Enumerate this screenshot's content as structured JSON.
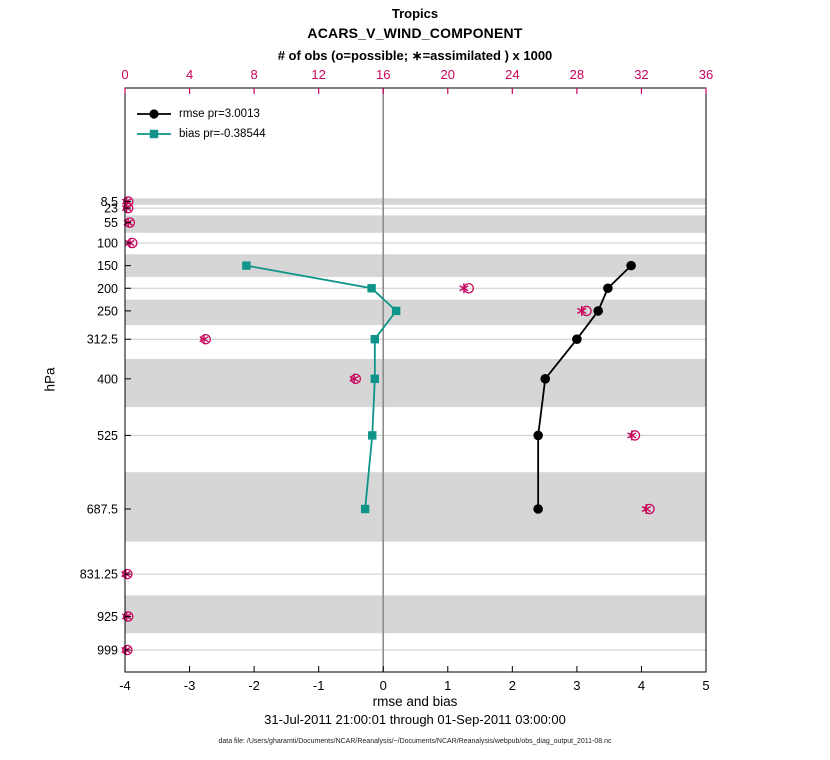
{
  "chart_data": {
    "type": "line",
    "title": "Tropics",
    "subtitle": "ACARS_V_WIND_COMPONENT",
    "obs_axis_label": "# of obs (o=possible; ∗=assimilated ) x 1000",
    "xlabel": "rmse and bias",
    "ylabel": "hPa",
    "timespan": "31-Jul-2011 21:00:01 through 01-Sep-2011 03:00:00",
    "datafile": "data file: /Users/gharamti/Documents/NCAR/Reanalysis/~/Documents/NCAR/Reanalysis/webpub/obs_diag_output_2011-08.nc",
    "legend": [
      {
        "series": "rmse",
        "label": "rmse pr=3.0013"
      },
      {
        "series": "bias",
        "label": "bias pr=-0.38544"
      }
    ],
    "legend_position": "top-left-inside",
    "grid": "horizontal",
    "xlim_bottom": [
      -4,
      5
    ],
    "xlim_top": [
      0,
      36
    ],
    "x_ticks_bottom": [
      -4,
      -3,
      -2,
      -1,
      0,
      1,
      2,
      3,
      4,
      5
    ],
    "x_ticks_top": [
      0,
      4,
      8,
      12,
      16,
      20,
      24,
      28,
      32,
      36
    ],
    "y_levels": [
      8.5,
      23,
      55,
      100,
      150,
      200,
      250,
      312.5,
      400,
      525,
      687.5,
      831.25,
      925,
      999
    ],
    "shaded_levels": [
      8.5,
      55,
      150,
      250,
      400,
      687.5,
      925
    ],
    "series": {
      "rmse": {
        "levels": [
          150,
          200,
          250,
          312.5,
          400,
          525,
          687.5
        ],
        "values": [
          3.84,
          3.48,
          3.33,
          3.0,
          2.51,
          2.4,
          2.4
        ]
      },
      "bias": {
        "levels": [
          150,
          200,
          250,
          312.5,
          400,
          525,
          687.5
        ],
        "values": [
          -2.12,
          -0.18,
          0.2,
          -0.13,
          -0.13,
          -0.17,
          -0.28
        ]
      }
    },
    "obs_counts": {
      "units": "x 1000",
      "levels": [
        8.5,
        23,
        55,
        100,
        200,
        250,
        312.5,
        400,
        525,
        687.5,
        831.25,
        925,
        999
      ],
      "possible": [
        0.2,
        0.2,
        0.3,
        0.45,
        21.3,
        28.6,
        5.0,
        14.3,
        31.6,
        32.5,
        0.15,
        0.2,
        0.15
      ],
      "assimilated": [
        0.1,
        0.1,
        0.2,
        0.3,
        21.0,
        28.3,
        4.9,
        14.2,
        31.4,
        32.3,
        0.05,
        0.1,
        0.05
      ]
    },
    "colors": {
      "rmse": "#000000",
      "bias": "#0E9488",
      "obs": "#C9045C",
      "band": "#D6D6D6",
      "grid": "#CBCBCB",
      "zero_line": "#8C8C8C"
    }
  }
}
